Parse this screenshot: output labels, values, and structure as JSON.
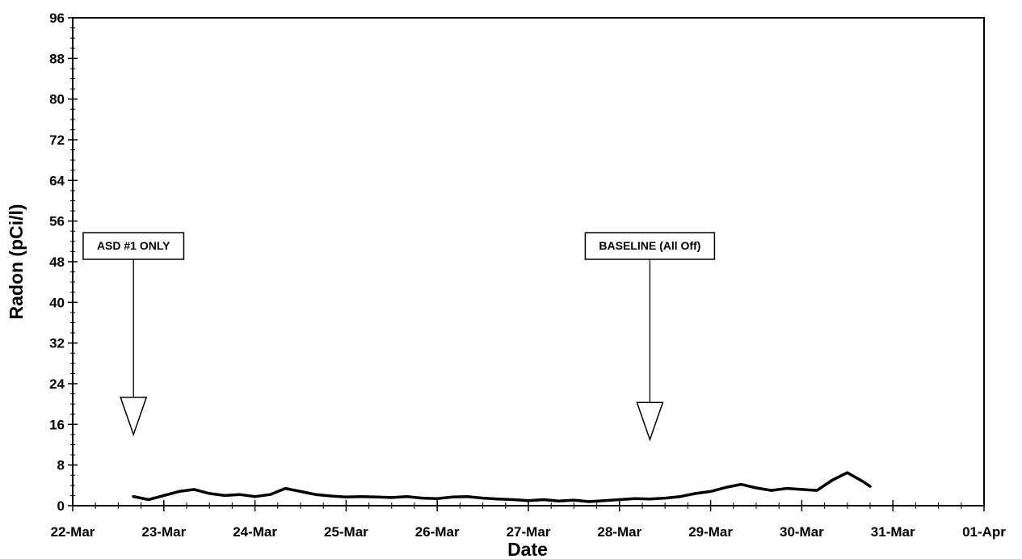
{
  "chart_data": {
    "type": "line",
    "title": "",
    "xlabel": "Date",
    "ylabel": "Radon (pCi/l)",
    "xlim": [
      "22-Mar",
      "01-Apr"
    ],
    "ylim": [
      0,
      96
    ],
    "x_ticks": [
      "22-Mar",
      "23-Mar",
      "24-Mar",
      "25-Mar",
      "26-Mar",
      "27-Mar",
      "28-Mar",
      "29-Mar",
      "30-Mar",
      "31-Mar",
      "01-Apr"
    ],
    "y_ticks": [
      0,
      8,
      16,
      24,
      32,
      40,
      48,
      56,
      64,
      72,
      80,
      88,
      96
    ],
    "grid": false,
    "legend": "none",
    "line_color": "#000000",
    "annotations": [
      {
        "text": "ASD #1 ONLY",
        "x": "22-Mar 16:00",
        "y": 14
      },
      {
        "text": "BASELINE (All Off)",
        "x": "28-Mar 08:00",
        "y": 13
      }
    ],
    "series": [
      {
        "x": [
          "22-Mar 16:00",
          "22-Mar 20:00",
          "23-Mar 00:00",
          "23-Mar 04:00",
          "23-Mar 08:00",
          "23-Mar 12:00",
          "23-Mar 16:00",
          "23-Mar 20:00",
          "24-Mar 00:00",
          "24-Mar 04:00",
          "24-Mar 08:00",
          "24-Mar 12:00",
          "24-Mar 16:00",
          "24-Mar 20:00",
          "25-Mar 00:00",
          "25-Mar 04:00",
          "25-Mar 08:00",
          "25-Mar 12:00",
          "25-Mar 16:00",
          "25-Mar 20:00",
          "26-Mar 00:00",
          "26-Mar 04:00",
          "26-Mar 08:00",
          "26-Mar 12:00",
          "26-Mar 16:00",
          "26-Mar 20:00",
          "27-Mar 00:00",
          "27-Mar 04:00",
          "27-Mar 08:00",
          "27-Mar 12:00",
          "27-Mar 16:00",
          "27-Mar 20:00",
          "28-Mar 00:00",
          "28-Mar 04:00",
          "28-Mar 08:00",
          "28-Mar 12:00",
          "28-Mar 16:00",
          "28-Mar 20:00",
          "29-Mar 00:00",
          "29-Mar 04:00",
          "29-Mar 08:00",
          "29-Mar 12:00",
          "29-Mar 16:00",
          "29-Mar 20:00",
          "30-Mar 00:00",
          "30-Mar 04:00",
          "30-Mar 08:00",
          "30-Mar 12:00",
          "30-Mar 16:00",
          "30-Mar 18:00"
        ],
        "values": [
          1.8,
          1.2,
          2.0,
          2.8,
          3.2,
          2.4,
          2.0,
          2.2,
          1.8,
          2.2,
          3.4,
          2.8,
          2.2,
          1.9,
          1.7,
          1.8,
          1.7,
          1.6,
          1.8,
          1.5,
          1.4,
          1.7,
          1.8,
          1.5,
          1.3,
          1.2,
          1.0,
          1.2,
          0.9,
          1.1,
          0.8,
          1.0,
          1.2,
          1.4,
          1.3,
          1.5,
          1.8,
          2.4,
          2.8,
          3.6,
          4.2,
          3.5,
          3.0,
          3.4,
          3.2,
          3.0,
          5.0,
          6.5,
          4.8,
          3.8
        ]
      }
    ]
  }
}
